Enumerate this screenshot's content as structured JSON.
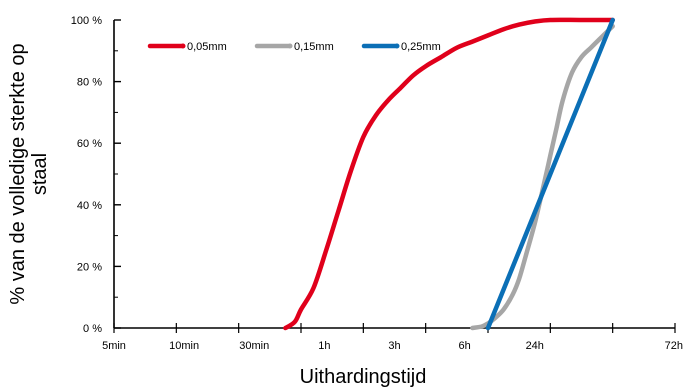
{
  "chart_data": {
    "type": "line",
    "title": "",
    "xlabel": "Uithardingstijd",
    "ylabel_lines": [
      "% van de volledige sterkte op",
      "staal"
    ],
    "x_scale": "categorical-time",
    "categories": [
      "5min",
      "10min",
      "30min",
      "1h",
      "3h",
      "6h",
      "24h",
      "72h"
    ],
    "yticks": [
      "0 %",
      "20 %",
      "40 %",
      "60 %",
      "80 %",
      "100 %"
    ],
    "ylim": [
      0,
      100
    ],
    "grid": false,
    "legend_position": "top-left",
    "series": [
      {
        "name": "0,05mm",
        "color": "#e0001b",
        "points": [
          [
            3.75,
            0
          ],
          [
            3.9,
            2
          ],
          [
            4.0,
            6
          ],
          [
            4.2,
            13
          ],
          [
            4.4,
            25
          ],
          [
            4.6,
            38
          ],
          [
            4.8,
            51
          ],
          [
            5.0,
            62
          ],
          [
            5.2,
            69
          ],
          [
            5.4,
            74
          ],
          [
            5.6,
            78
          ],
          [
            5.8,
            82
          ],
          [
            6.0,
            85
          ],
          [
            6.25,
            88
          ],
          [
            6.5,
            91
          ],
          [
            6.75,
            93
          ],
          [
            7.0,
            95
          ],
          [
            7.25,
            97
          ],
          [
            7.5,
            98.5
          ],
          [
            7.75,
            99.5
          ],
          [
            8.0,
            100
          ],
          [
            8.5,
            100
          ],
          [
            9.0,
            100
          ]
        ]
      },
      {
        "name": "0,15mm",
        "color": "#a6a6a6",
        "points": [
          [
            6.75,
            0
          ],
          [
            6.9,
            0.5
          ],
          [
            7.0,
            1.5
          ],
          [
            7.1,
            3
          ],
          [
            7.25,
            6
          ],
          [
            7.4,
            11
          ],
          [
            7.5,
            16
          ],
          [
            7.6,
            23
          ],
          [
            7.75,
            34
          ],
          [
            7.9,
            47
          ],
          [
            8.0,
            56
          ],
          [
            8.1,
            65
          ],
          [
            8.2,
            74
          ],
          [
            8.35,
            83
          ],
          [
            8.5,
            88
          ],
          [
            8.65,
            91
          ],
          [
            8.8,
            94
          ],
          [
            9.0,
            98
          ]
        ]
      },
      {
        "name": "0,25mm",
        "color": "#0b6fb6",
        "points": [
          [
            7.0,
            0
          ],
          [
            9.0,
            100
          ]
        ]
      }
    ]
  }
}
